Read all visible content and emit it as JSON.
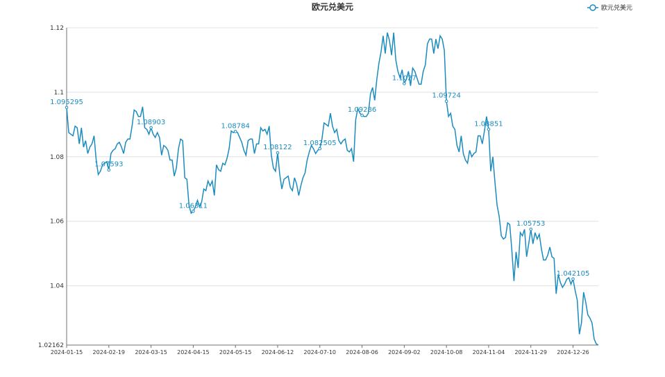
{
  "chart_data": {
    "type": "line",
    "title": "欧元兑美元",
    "categories": [
      "2024-01-15",
      null,
      null,
      null,
      null,
      null,
      null,
      null,
      null,
      null,
      null,
      null,
      null,
      null,
      null,
      null,
      null,
      null,
      null,
      null,
      "2024-02-19",
      null,
      null,
      null,
      null,
      null,
      null,
      null,
      null,
      null,
      null,
      null,
      null,
      null,
      null,
      null,
      null,
      null,
      null,
      null,
      "2024-03-15",
      null,
      null,
      null,
      null,
      null,
      null,
      null,
      null,
      null,
      null,
      null,
      null,
      null,
      null,
      null,
      null,
      null,
      null,
      null,
      "2024-04-15",
      null,
      null,
      null,
      null,
      null,
      null,
      null,
      null,
      null,
      null,
      null,
      null,
      null,
      null,
      null,
      null,
      null,
      null,
      null,
      "2024-05-15",
      null,
      null,
      null,
      null,
      null,
      null,
      null,
      null,
      null,
      null,
      null,
      null,
      null,
      null,
      null,
      null,
      null,
      null,
      null,
      "2024-06-12",
      null,
      null,
      null,
      null,
      null,
      null,
      null,
      null,
      null,
      null,
      null,
      null,
      null,
      null,
      null,
      null,
      null,
      null,
      null,
      "2024-07-10",
      null,
      null,
      null,
      null,
      null,
      null,
      null,
      null,
      null,
      null,
      null,
      null,
      null,
      null,
      null,
      null,
      null,
      null,
      null,
      "2024-08-06",
      null,
      null,
      null,
      null,
      null,
      null,
      null,
      null,
      null,
      null,
      null,
      null,
      null,
      null,
      null,
      null,
      null,
      null,
      null,
      "2024-09-02",
      null,
      null,
      null,
      null,
      null,
      null,
      null,
      null,
      null,
      null,
      null,
      null,
      null,
      null,
      null,
      null,
      null,
      null,
      null,
      "2024-10-08",
      null,
      null,
      null,
      null,
      null,
      null,
      null,
      null,
      null,
      null,
      null,
      null,
      null,
      null,
      null,
      null,
      null,
      null,
      null,
      "2024-11-04",
      null,
      null,
      null,
      null,
      null,
      null,
      null,
      null,
      null,
      null,
      null,
      null,
      null,
      null,
      null,
      null,
      null,
      null,
      null,
      "2024-11-29",
      null,
      null,
      null,
      null,
      null,
      null,
      null,
      null,
      null,
      null,
      null,
      null,
      null,
      null,
      null,
      null,
      null,
      null,
      null,
      "2024-12-26",
      null,
      null,
      null,
      null,
      null,
      null,
      null,
      null,
      null,
      null,
      null,
      null
    ],
    "series": [
      {
        "name": "欧元兑美元",
        "color": "#1a8bbf",
        "values": [
          1.095295,
          1.0875,
          1.087,
          1.0865,
          1.0895,
          1.089,
          1.084,
          1.089,
          1.083,
          1.085,
          1.081,
          1.083,
          1.084,
          1.0865,
          1.079,
          1.0745,
          1.0755,
          1.0775,
          1.078,
          1.0785,
          1.07593,
          1.081,
          1.082,
          1.0825,
          1.084,
          1.0845,
          1.083,
          1.081,
          1.0845,
          1.0855,
          1.0855,
          1.0895,
          1.0945,
          1.094,
          1.0925,
          1.0925,
          1.0955,
          1.089,
          1.0885,
          1.087,
          1.08903,
          1.087,
          1.086,
          1.0875,
          1.086,
          1.0805,
          1.0835,
          1.083,
          1.082,
          1.079,
          1.079,
          1.074,
          1.0765,
          1.0825,
          1.0855,
          1.085,
          1.0735,
          1.073,
          1.065,
          1.0625,
          1.06311,
          1.0645,
          1.0665,
          1.0645,
          1.066,
          1.07,
          1.0695,
          1.0725,
          1.071,
          1.0725,
          1.068,
          1.0775,
          1.076,
          1.0755,
          1.078,
          1.0775,
          1.0795,
          1.0825,
          1.088,
          1.0875,
          1.08784,
          1.0875,
          1.086,
          1.0845,
          1.082,
          1.0805,
          1.085,
          1.0855,
          1.0855,
          1.081,
          1.084,
          1.084,
          1.089,
          1.088,
          1.0885,
          1.087,
          1.0895,
          1.0805,
          1.0765,
          1.0755,
          1.08122,
          1.0745,
          1.07,
          1.073,
          1.0735,
          1.074,
          1.0705,
          1.0695,
          1.0735,
          1.0715,
          1.068,
          1.071,
          1.0735,
          1.075,
          1.079,
          1.0815,
          1.0835,
          1.0825,
          1.081,
          1.082,
          1.082505,
          1.0855,
          1.0905,
          1.09,
          1.0895,
          1.0935,
          1.0895,
          1.0875,
          1.0885,
          1.085,
          1.084,
          1.085,
          1.0855,
          1.082,
          1.0815,
          1.0825,
          1.0785,
          1.0915,
          1.095,
          1.0935,
          1.09286,
          1.0925,
          1.0925,
          1.0935,
          1.0995,
          1.1015,
          1.0975,
          1.104,
          1.109,
          1.1125,
          1.1175,
          1.112,
          1.1185,
          1.116,
          1.1115,
          1.1185,
          1.11,
          1.1065,
          1.1045,
          1.107,
          1.1027,
          1.104,
          1.1065,
          1.102,
          1.1075,
          1.1065,
          1.1045,
          1.1025,
          1.1025,
          1.1065,
          1.1085,
          1.115,
          1.1165,
          1.1165,
          1.112,
          1.1165,
          1.1135,
          1.1175,
          1.1165,
          1.113,
          1.09724,
          1.0925,
          1.0935,
          1.0895,
          1.0885,
          1.0835,
          1.0815,
          1.0865,
          1.081,
          1.079,
          1.078,
          1.082,
          1.08,
          1.081,
          1.0815,
          1.0865,
          1.0865,
          1.084,
          1.088,
          1.0925,
          1.08851,
          1.0755,
          1.08,
          1.072,
          1.065,
          1.0615,
          1.0555,
          1.0545,
          1.055,
          1.0595,
          1.059,
          1.051,
          1.0415,
          1.0505,
          1.0455,
          1.0565,
          1.0555,
          1.0575,
          1.049,
          1.053,
          1.05753,
          1.053,
          1.0565,
          1.0545,
          1.056,
          1.0515,
          1.048,
          1.048,
          1.0495,
          1.052,
          1.049,
          1.0485,
          1.0375,
          1.0435,
          1.041,
          1.0395,
          1.0405,
          1.042,
          1.0425,
          1.0405,
          1.042105,
          1.0385,
          1.0355,
          1.025,
          1.0285,
          1.038,
          1.035,
          1.031,
          1.03,
          1.0285,
          1.0235,
          1.022,
          1.02162
        ]
      }
    ],
    "ylim": [
      1.02162,
      1.12
    ],
    "yticks": [
      1.02162,
      1.04,
      1.06,
      1.08,
      1.1,
      1.12
    ],
    "grid": true,
    "legend": "top-right"
  }
}
